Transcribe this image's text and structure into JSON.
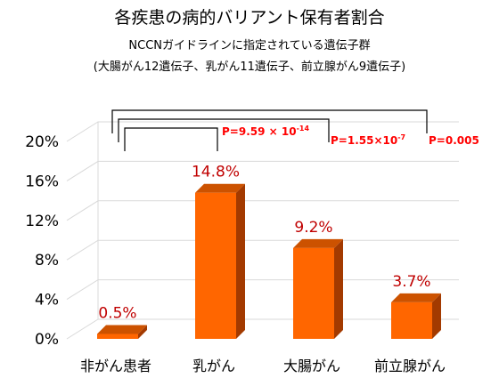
{
  "chart_data": {
    "type": "bar",
    "title": "各疾患の病的バリアント保有者割合",
    "subtitle": "NCCNガイドラインに指定されている遺伝子群",
    "subtitle2": "(大腸がん12遺伝子、乳がん11遺伝子、前立腺がん9遺伝子)",
    "categories": [
      "非がん患者",
      "乳がん",
      "大腸がん",
      "前立腺がん"
    ],
    "values": [
      0.5,
      14.8,
      9.2,
      3.7
    ],
    "value_labels": [
      "0.5%",
      "14.8%",
      "9.2%",
      "3.7%"
    ],
    "ylim": [
      0,
      20
    ],
    "yticks": [
      "0%",
      "4%",
      "8%",
      "12%",
      "16%",
      "20%"
    ],
    "ytick_values": [
      0,
      4,
      8,
      12,
      16,
      20
    ],
    "grid": true,
    "xlabel": "",
    "ylabel": "",
    "bar_color": "#ff6600",
    "annotations": [
      {
        "from": "非がん患者",
        "to": "乳がん",
        "base": "P=9.59 × 10",
        "exp": "-14"
      },
      {
        "from": "非がん患者",
        "to": "大腸がん",
        "base": "P=1.55×10",
        "exp": "-7"
      },
      {
        "from": "非がん患者",
        "to": "前立腺がん",
        "base": "P=0.005",
        "exp": ""
      }
    ]
  }
}
